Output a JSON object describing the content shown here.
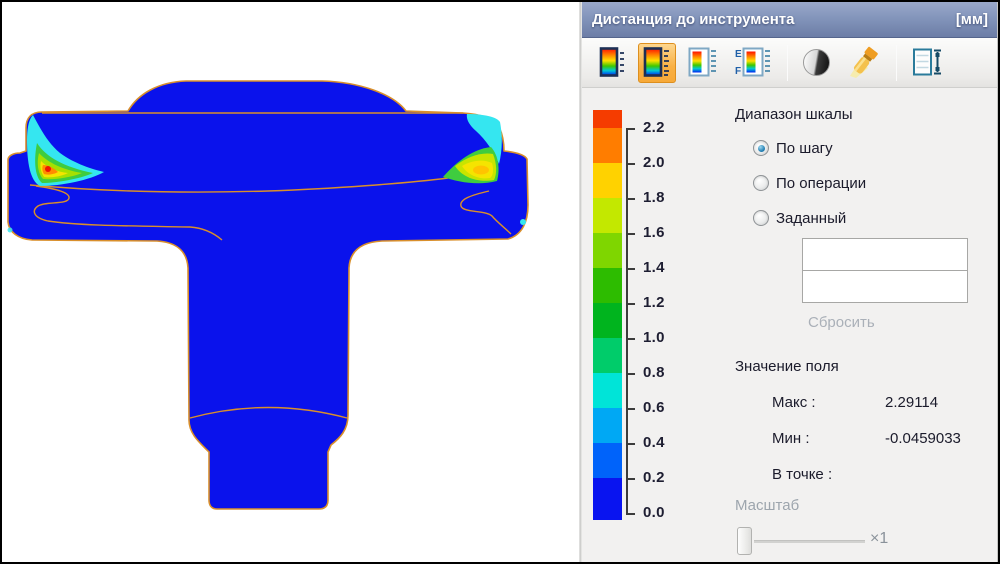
{
  "window": {
    "title": "Дистанция до инструмента",
    "unit": "[мм]"
  },
  "toolbar": {
    "icons": [
      {
        "name": "scale-bar-icon",
        "selected": false
      },
      {
        "name": "scale-ticks-icon",
        "selected": true
      },
      {
        "name": "scale-labels-icon",
        "selected": false
      },
      {
        "name": "scale-number-format-icon",
        "selected": false
      },
      {
        "name": "contrast-icon",
        "selected": false
      },
      {
        "name": "flashlight-icon",
        "selected": false
      },
      {
        "name": "scale-size-icon",
        "selected": false
      }
    ],
    "ef": {
      "top": "E",
      "bottom": "F"
    }
  },
  "scale": {
    "ticks": [
      "2.2",
      "2.0",
      "1.8",
      "1.6",
      "1.4",
      "1.2",
      "1.0",
      "0.8",
      "0.6",
      "0.4",
      "0.2",
      "0.0"
    ],
    "segment_colors": [
      "#f53c00",
      "#ff7d00",
      "#ffd200",
      "#c3e800",
      "#7fd600",
      "#2dbc00",
      "#00b41e",
      "#00cc6a",
      "#00e4d8",
      "#00a8f4",
      "#0063fa",
      "#0914f0"
    ]
  },
  "scale_range": {
    "heading": "Диапазон шкалы",
    "options": [
      {
        "label": "По шагу",
        "selected": true
      },
      {
        "label": "По операции",
        "selected": false
      },
      {
        "label": "Заданный",
        "selected": false
      }
    ],
    "inputs": [
      {
        "value": ""
      },
      {
        "value": ""
      }
    ],
    "reset_label": "Сбросить"
  },
  "field_value": {
    "heading": "Значение поля",
    "rows": [
      {
        "label": "Макс :",
        "value": "2.29114"
      },
      {
        "label": "Мин :",
        "value": "-0.0459033"
      },
      {
        "label": "В точке :",
        "value": ""
      }
    ]
  },
  "scale_slider": {
    "label": "Масштаб",
    "value_label": "×1"
  },
  "colors": {
    "part_blue": "#0a12ec",
    "contour_orange": "#d98f2b",
    "titlebar_top": "#9aa8ca",
    "titlebar_bottom": "#6c7da6",
    "selection_orange": "#f9b044",
    "panel_bg": "#f2f1f0"
  }
}
